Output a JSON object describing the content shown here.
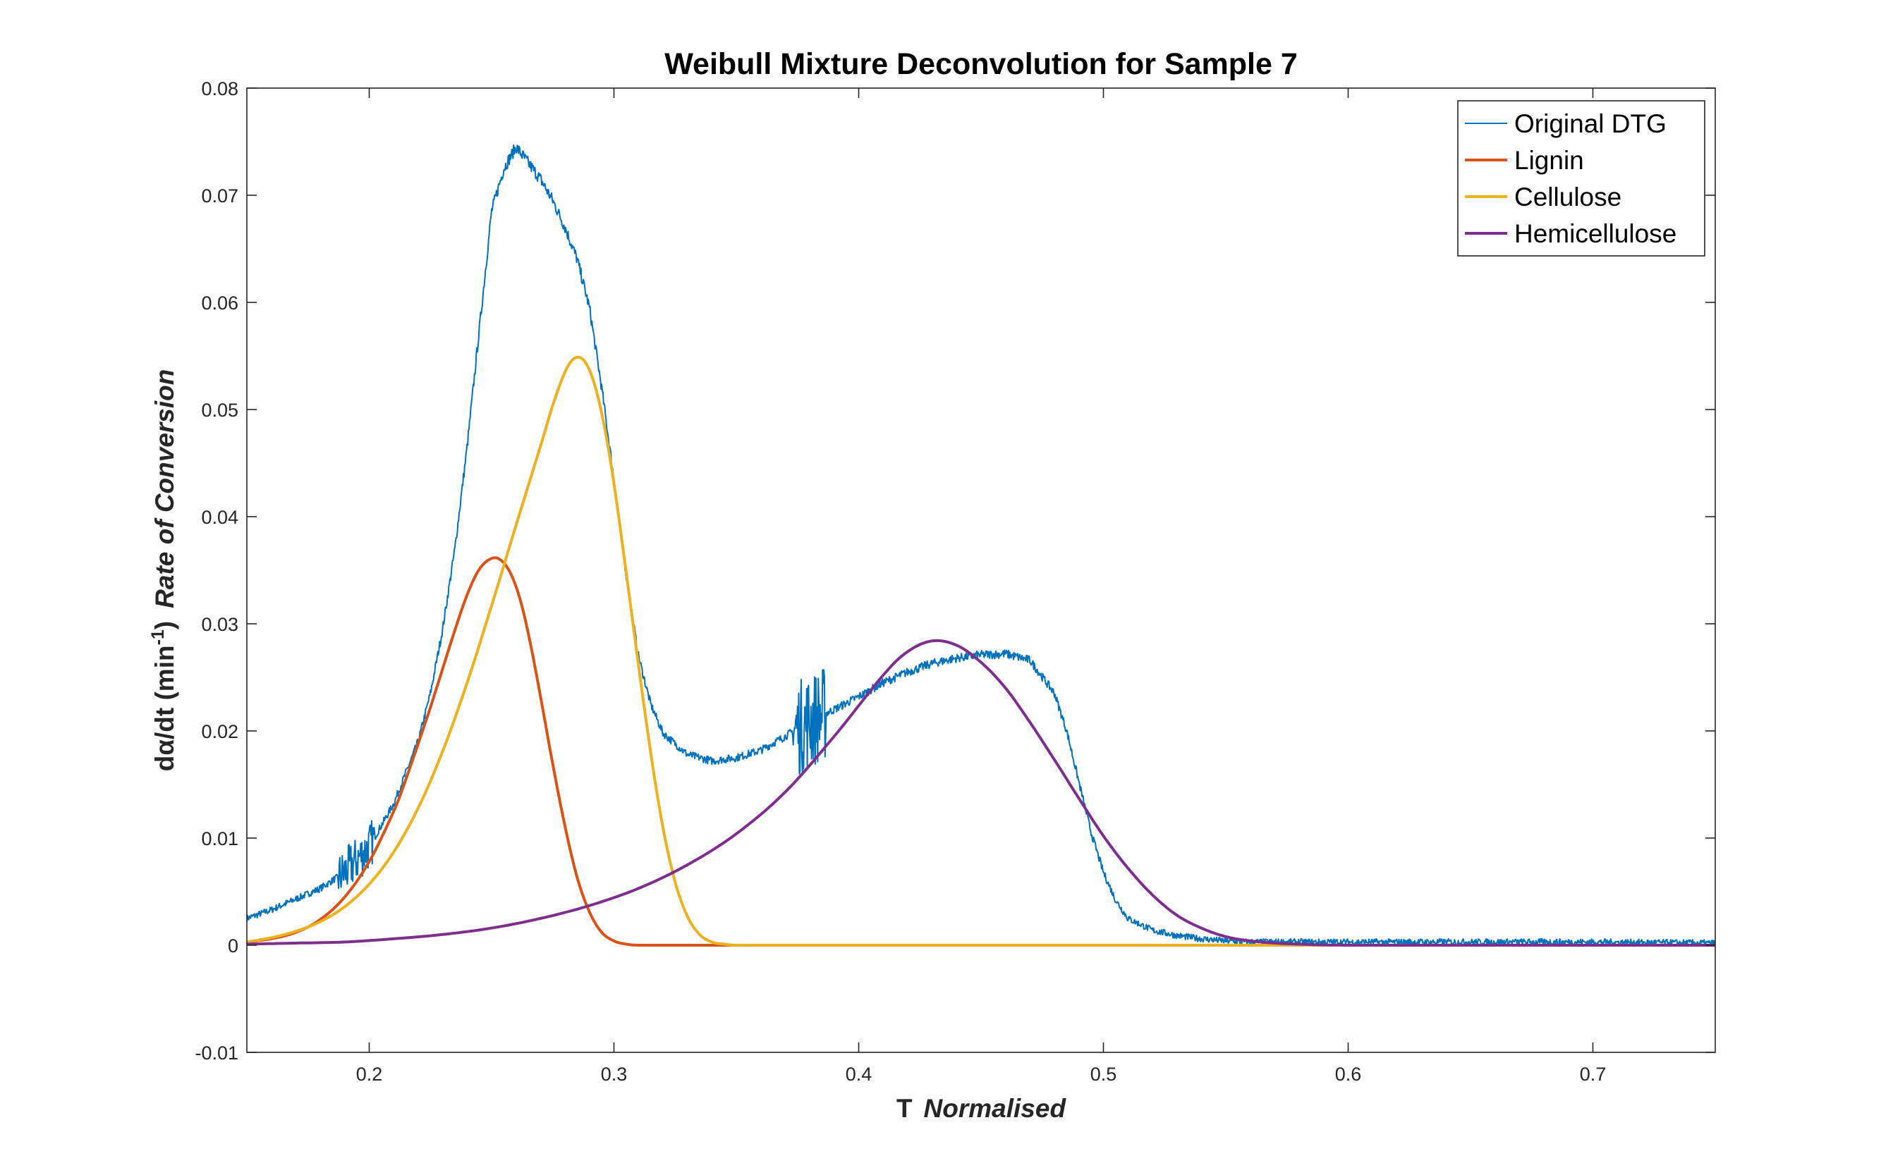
{
  "chart_data": {
    "type": "line",
    "title": "Weibull Mixture Deconvolution for Sample 7",
    "xlabel": {
      "prefix": "T",
      "main": "Normalised"
    },
    "ylabel": {
      "prefix": "dα/dt (min",
      "superscript": "-1",
      "suffix": ")",
      "main": "Rate of Conversion"
    },
    "xlim": [
      0.15,
      0.75
    ],
    "ylim": [
      -0.01,
      0.08
    ],
    "xticks": [
      0.2,
      0.3,
      0.4,
      0.5,
      0.6,
      0.7
    ],
    "xtick_labels": [
      "0.2",
      "0.3",
      "0.4",
      "0.5",
      "0.6",
      "0.7"
    ],
    "yticks": [
      -0.01,
      0,
      0.01,
      0.02,
      0.03,
      0.04,
      0.05,
      0.06,
      0.07,
      0.08
    ],
    "ytick_labels": [
      "-0.01",
      "0",
      "0.01",
      "0.02",
      "0.03",
      "0.04",
      "0.05",
      "0.06",
      "0.07",
      "0.08"
    ],
    "grid": false,
    "legend_position": "top-right",
    "series": [
      {
        "name": "Original DTG",
        "color": "#0072BD",
        "noisy": true,
        "x": [
          0.15,
          0.16,
          0.17,
          0.18,
          0.19,
          0.2,
          0.21,
          0.22,
          0.225,
          0.23,
          0.235,
          0.24,
          0.245,
          0.25,
          0.255,
          0.26,
          0.265,
          0.27,
          0.275,
          0.28,
          0.285,
          0.29,
          0.295,
          0.3,
          0.305,
          0.31,
          0.315,
          0.32,
          0.33,
          0.34,
          0.35,
          0.36,
          0.37,
          0.38,
          0.39,
          0.4,
          0.41,
          0.42,
          0.43,
          0.44,
          0.45,
          0.46,
          0.47,
          0.48,
          0.485,
          0.49,
          0.495,
          0.5,
          0.505,
          0.51,
          0.52,
          0.53,
          0.54,
          0.55,
          0.56,
          0.6,
          0.65,
          0.7,
          0.75
        ],
        "y": [
          0.0025,
          0.0033,
          0.0043,
          0.0053,
          0.0068,
          0.0092,
          0.0132,
          0.019,
          0.0235,
          0.0295,
          0.037,
          0.0465,
          0.0575,
          0.0685,
          0.0725,
          0.0745,
          0.073,
          0.0715,
          0.0695,
          0.067,
          0.064,
          0.0595,
          0.052,
          0.0435,
          0.0345,
          0.027,
          0.0225,
          0.0198,
          0.0178,
          0.0172,
          0.0175,
          0.0182,
          0.0195,
          0.021,
          0.022,
          0.0232,
          0.0245,
          0.0255,
          0.0263,
          0.0268,
          0.0271,
          0.0272,
          0.0266,
          0.0235,
          0.02,
          0.0152,
          0.0105,
          0.0068,
          0.0042,
          0.0025,
          0.0014,
          0.0009,
          0.0006,
          0.0004,
          0.0003,
          0.0003,
          0.0003,
          0.0003,
          0.0002
        ]
      },
      {
        "name": "Lignin",
        "color": "#D95319",
        "x": [
          0.15,
          0.16,
          0.17,
          0.18,
          0.19,
          0.2,
          0.21,
          0.215,
          0.22,
          0.225,
          0.23,
          0.235,
          0.24,
          0.245,
          0.25,
          0.254,
          0.258,
          0.262,
          0.266,
          0.27,
          0.275,
          0.28,
          0.285,
          0.29,
          0.295,
          0.3,
          0.305,
          0.31,
          0.32,
          0.35,
          0.75
        ],
        "y": [
          0.0003,
          0.0006,
          0.0012,
          0.0024,
          0.0045,
          0.0078,
          0.0125,
          0.0155,
          0.0188,
          0.0222,
          0.0258,
          0.0294,
          0.0327,
          0.0351,
          0.0361,
          0.0359,
          0.0346,
          0.032,
          0.028,
          0.0232,
          0.0169,
          0.0111,
          0.0063,
          0.0031,
          0.0012,
          0.0004,
          0.0001,
          0.0,
          0.0,
          0.0,
          0.0
        ]
      },
      {
        "name": "Cellulose",
        "color": "#EDB120",
        "x": [
          0.15,
          0.16,
          0.17,
          0.18,
          0.19,
          0.2,
          0.21,
          0.22,
          0.23,
          0.24,
          0.25,
          0.26,
          0.27,
          0.275,
          0.28,
          0.284,
          0.288,
          0.292,
          0.296,
          0.3,
          0.305,
          0.31,
          0.315,
          0.32,
          0.325,
          0.33,
          0.335,
          0.34,
          0.345,
          0.35,
          0.36,
          0.4,
          0.75
        ],
        "y": [
          0.0003,
          0.0007,
          0.0013,
          0.0022,
          0.0036,
          0.0057,
          0.0087,
          0.0128,
          0.0181,
          0.0245,
          0.0317,
          0.0392,
          0.0466,
          0.0504,
          0.0535,
          0.0548,
          0.0545,
          0.0524,
          0.0485,
          0.0431,
          0.0348,
          0.0262,
          0.018,
          0.011,
          0.0059,
          0.0027,
          0.001,
          0.0003,
          0.0001,
          0.0,
          0.0,
          0.0,
          0.0
        ]
      },
      {
        "name": "Hemicellulose",
        "color": "#7E2F8E",
        "x": [
          0.15,
          0.17,
          0.19,
          0.21,
          0.23,
          0.25,
          0.27,
          0.29,
          0.31,
          0.33,
          0.35,
          0.37,
          0.39,
          0.41,
          0.42,
          0.43,
          0.44,
          0.45,
          0.46,
          0.47,
          0.48,
          0.49,
          0.5,
          0.51,
          0.52,
          0.53,
          0.54,
          0.55,
          0.56,
          0.57,
          0.58,
          0.6,
          0.65,
          0.75
        ],
        "y": [
          0.0001,
          0.0002,
          0.0003,
          0.0006,
          0.001,
          0.0016,
          0.0025,
          0.0037,
          0.0053,
          0.0075,
          0.0104,
          0.0143,
          0.0195,
          0.0252,
          0.0274,
          0.0284,
          0.028,
          0.0264,
          0.024,
          0.0208,
          0.0173,
          0.0137,
          0.0102,
          0.0072,
          0.0047,
          0.0028,
          0.0016,
          0.0008,
          0.0004,
          0.0002,
          0.0001,
          0.0,
          0.0,
          0.0
        ]
      }
    ]
  }
}
